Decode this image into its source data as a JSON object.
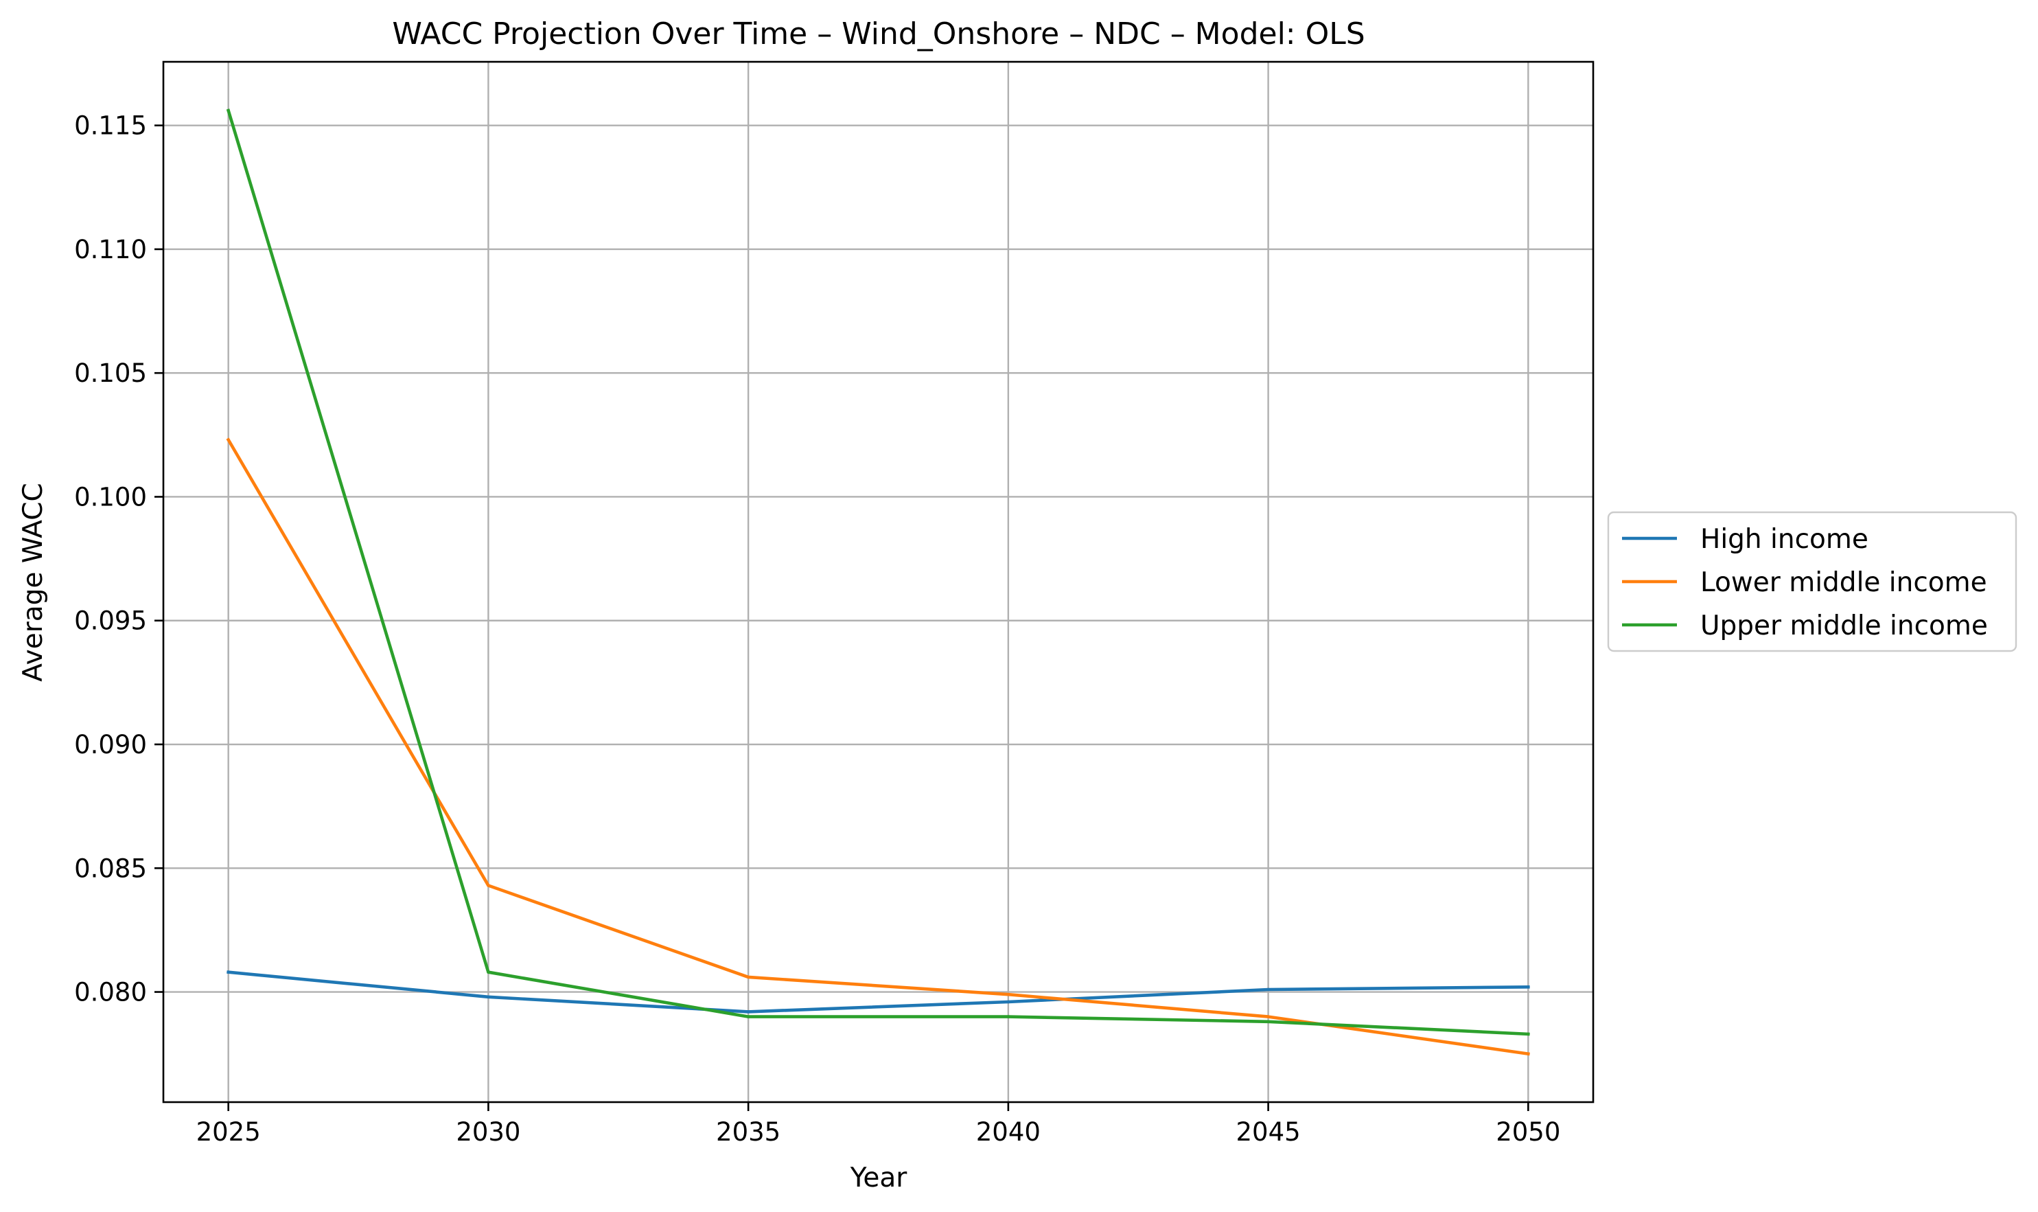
{
  "chart_data": {
    "type": "line",
    "title": "WACC Projection Over Time – Wind_Onshore – NDC – Model: OLS",
    "xlabel": "Year",
    "ylabel": "Average WACC",
    "x": [
      2025,
      2030,
      2035,
      2040,
      2045,
      2050
    ],
    "x_ticks": [
      "2025",
      "2030",
      "2035",
      "2040",
      "2045",
      "2050"
    ],
    "xlim": [
      2023.75,
      2051.25
    ],
    "y_ticks": [
      "0.080",
      "0.085",
      "0.090",
      "0.095",
      "0.100",
      "0.105",
      "0.110",
      "0.115"
    ],
    "ylim": [
      0.07555,
      0.11757
    ],
    "grid": true,
    "legend_position": "center-right-outside",
    "series": [
      {
        "name": "High income",
        "color": "#1f77b4",
        "values": [
          0.0808,
          0.0798,
          0.0792,
          0.0796,
          0.0801,
          0.0802
        ]
      },
      {
        "name": "Lower middle income",
        "color": "#ff7f0e",
        "values": [
          0.1023,
          0.0843,
          0.0806,
          0.0799,
          0.079,
          0.0775
        ]
      },
      {
        "name": "Upper middle income",
        "color": "#2ca02c",
        "values": [
          0.1156,
          0.0808,
          0.079,
          0.079,
          0.0788,
          0.0783
        ]
      }
    ]
  }
}
